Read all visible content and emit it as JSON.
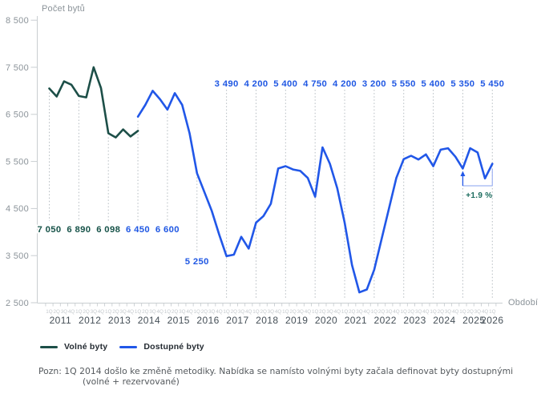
{
  "colors": {
    "teal": "#1d4f48",
    "teal_text": "#175349",
    "blue": "#2157e8",
    "blue_text": "#1f57e3",
    "annotation_text": "#1a6b5d",
    "axis": "#c9ced1",
    "y_tick_label": "#8b9399",
    "quarter_label": "#c4c9cd",
    "year_label": "#454f57",
    "gridline": "#b5bcc1",
    "bracket": "#9fb3f2",
    "legend_text": "#232a31"
  },
  "legend": [
    {
      "label": "Volné byty",
      "color_key": "teal"
    },
    {
      "label": "Dostupné byty",
      "color_key": "blue"
    }
  ],
  "footnote": {
    "line1": "Pozn: 1Q 2014 došlo ke změně metodiky. Nabídka se namísto volnými byty začala definovat byty dostupnými",
    "line2": "(volné + rezervované)"
  },
  "chart_data": {
    "type": "line",
    "ylabel": "Počet bytů",
    "xlabel": "Období",
    "ylim": [
      2500,
      8500
    ],
    "y_ticks": [
      2500,
      3500,
      4500,
      5500,
      6500,
      7500,
      8500
    ],
    "grid": "dotted vertical at each 1Q",
    "legend_position": "bottom-left",
    "years": [
      2011,
      2012,
      2013,
      2014,
      2015,
      2016,
      2017,
      2018,
      2019,
      2020,
      2021,
      2022,
      2023,
      2024,
      2025,
      2026
    ],
    "quarter_suffix": "Q",
    "x_note": "quarters 1Q2011 .. 1Q2026, 61 points",
    "series": [
      {
        "name": "Volné byty",
        "color_key": "teal",
        "start_index": 0,
        "values": [
          7050,
          6880,
          7200,
          7130,
          6890,
          6860,
          7500,
          7060,
          6098,
          6010,
          6180,
          6030,
          6150
        ]
      },
      {
        "name": "Dostupné byty",
        "color_key": "blue",
        "start_index": 12,
        "values": [
          6450,
          6700,
          7000,
          6820,
          6600,
          6950,
          6700,
          6100,
          5250,
          4850,
          4450,
          3950,
          3490,
          3520,
          3900,
          3650,
          4200,
          4340,
          4600,
          5350,
          5400,
          5330,
          5300,
          5150,
          4750,
          5800,
          5450,
          4930,
          4200,
          3300,
          2720,
          2780,
          3200,
          3850,
          4500,
          5150,
          5550,
          5620,
          5540,
          5650,
          5400,
          5750,
          5780,
          5600,
          5350,
          5780,
          5690,
          5140,
          5450
        ]
      }
    ],
    "value_labels": [
      {
        "qi": 0,
        "text": "7 050",
        "color_key": "teal_text",
        "pos": "bottom"
      },
      {
        "qi": 4,
        "text": "6 890",
        "color_key": "teal_text",
        "pos": "bottom"
      },
      {
        "qi": 8,
        "text": "6 098",
        "color_key": "teal_text",
        "pos": "bottom"
      },
      {
        "qi": 12,
        "text": "6 450",
        "color_key": "blue_text",
        "pos": "bottom"
      },
      {
        "qi": 16,
        "text": "6 600",
        "color_key": "blue_text",
        "pos": "bottom"
      },
      {
        "qi": 20,
        "text": "5 250",
        "color_key": "blue_text",
        "pos": "low"
      },
      {
        "qi": 24,
        "text": "3 490",
        "color_key": "blue_text",
        "pos": "top"
      },
      {
        "qi": 28,
        "text": "4 200",
        "color_key": "blue_text",
        "pos": "top"
      },
      {
        "qi": 32,
        "text": "5 400",
        "color_key": "blue_text",
        "pos": "top"
      },
      {
        "qi": 36,
        "text": "4 750",
        "color_key": "blue_text",
        "pos": "top"
      },
      {
        "qi": 40,
        "text": "4 200",
        "color_key": "blue_text",
        "pos": "top"
      },
      {
        "qi": 44,
        "text": "3 200",
        "color_key": "blue_text",
        "pos": "top"
      },
      {
        "qi": 48,
        "text": "5 550",
        "color_key": "blue_text",
        "pos": "top"
      },
      {
        "qi": 52,
        "text": "5 400",
        "color_key": "blue_text",
        "pos": "top"
      },
      {
        "qi": 56,
        "text": "5 350",
        "color_key": "blue_text",
        "pos": "top"
      },
      {
        "qi": 60,
        "text": "5 450",
        "color_key": "blue_text",
        "pos": "top"
      }
    ],
    "annotation": {
      "label": "+1.9 %",
      "from_qi": 56,
      "to_qi": 60
    }
  }
}
